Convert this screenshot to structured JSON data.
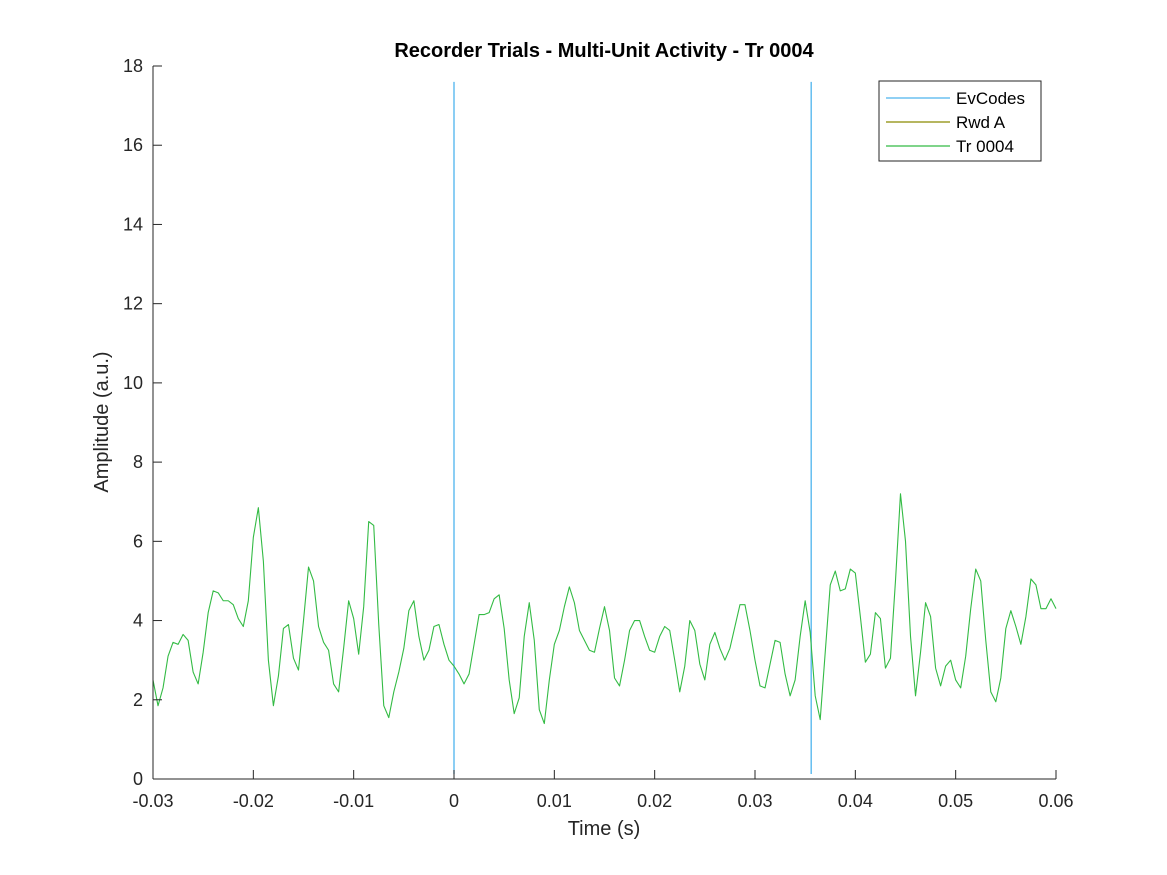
{
  "chart_data": {
    "type": "line",
    "title": "Recorder Trials - Multi-Unit Activity - Tr 0004",
    "xlabel": "Time (s)",
    "ylabel": "Amplitude (a.u.)",
    "xlim": [
      -0.03,
      0.06
    ],
    "ylim": [
      0,
      18
    ],
    "x_ticks": [
      -0.03,
      -0.02,
      -0.01,
      0,
      0.01,
      0.02,
      0.03,
      0.04,
      0.05,
      0.06
    ],
    "x_tick_labels": [
      "-0.03",
      "-0.02",
      "-0.01",
      "0",
      "0.01",
      "0.02",
      "0.03",
      "0.04",
      "0.05",
      "0.06"
    ],
    "y_ticks": [
      0,
      2,
      4,
      6,
      8,
      10,
      12,
      14,
      16,
      18
    ],
    "y_tick_labels": [
      "0",
      "2",
      "4",
      "6",
      "8",
      "10",
      "12",
      "14",
      "16",
      "18"
    ],
    "grid": false,
    "legend_position": "top-right",
    "legend": [
      {
        "label": "EvCodes",
        "color": "#4db3ee"
      },
      {
        "label": "Rwd A",
        "color": "#8b8b00"
      },
      {
        "label": "Tr 0004",
        "color": "#33bb44"
      }
    ],
    "event_lines": {
      "name": "EvCodes",
      "color": "#4db3ee",
      "x": [
        0,
        0.0356
      ],
      "y_range": [
        0,
        17.6
      ]
    },
    "series": [
      {
        "name": "Tr 0004",
        "color": "#33bb44",
        "x": [
          -0.03,
          -0.0295,
          -0.029,
          -0.0285,
          -0.028,
          -0.0275,
          -0.027,
          -0.0265,
          -0.026,
          -0.0255,
          -0.025,
          -0.0245,
          -0.024,
          -0.0235,
          -0.023,
          -0.0225,
          -0.022,
          -0.0215,
          -0.021,
          -0.0205,
          -0.02,
          -0.0195,
          -0.019,
          -0.0185,
          -0.018,
          -0.0175,
          -0.017,
          -0.0165,
          -0.016,
          -0.0155,
          -0.015,
          -0.0145,
          -0.014,
          -0.0135,
          -0.013,
          -0.0125,
          -0.012,
          -0.0115,
          -0.011,
          -0.0105,
          -0.01,
          -0.0095,
          -0.009,
          -0.0085,
          -0.008,
          -0.0075,
          -0.007,
          -0.0065,
          -0.006,
          -0.0055,
          -0.005,
          -0.0045,
          -0.004,
          -0.0035,
          -0.003,
          -0.0025,
          -0.002,
          -0.0015,
          -0.001,
          -0.0005,
          0,
          0.0005,
          0.001,
          0.0015,
          0.002,
          0.0025,
          0.003,
          0.0035,
          0.004,
          0.0045,
          0.005,
          0.0055,
          0.006,
          0.0065,
          0.007,
          0.0075,
          0.008,
          0.0085,
          0.009,
          0.0095,
          0.01,
          0.0105,
          0.011,
          0.0115,
          0.012,
          0.0125,
          0.013,
          0.0135,
          0.014,
          0.0145,
          0.015,
          0.0155,
          0.016,
          0.0165,
          0.017,
          0.0175,
          0.018,
          0.0185,
          0.019,
          0.0195,
          0.02,
          0.0205,
          0.021,
          0.0215,
          0.022,
          0.0225,
          0.023,
          0.0235,
          0.024,
          0.0245,
          0.025,
          0.0255,
          0.026,
          0.0265,
          0.027,
          0.0275,
          0.028,
          0.0285,
          0.029,
          0.0295,
          0.03,
          0.0305,
          0.031,
          0.0315,
          0.032,
          0.0325,
          0.033,
          0.0335,
          0.034,
          0.0345,
          0.035,
          0.0355,
          0.036,
          0.0365,
          0.037,
          0.0375,
          0.038,
          0.0385,
          0.039,
          0.0395,
          0.04,
          0.0405,
          0.041,
          0.0415,
          0.042,
          0.0425,
          0.043,
          0.0435,
          0.044,
          0.0445,
          0.045,
          0.0455,
          0.046,
          0.0465,
          0.047,
          0.0475,
          0.048,
          0.0485,
          0.049,
          0.0495,
          0.05,
          0.0505,
          0.051,
          0.0515,
          0.052,
          0.0525,
          0.053,
          0.0535,
          0.054,
          0.0545,
          0.055,
          0.0555,
          0.056,
          0.0565,
          0.057,
          0.0575,
          0.058,
          0.0585,
          0.059,
          0.0595,
          0.06
        ],
        "y": [
          2.5,
          1.85,
          2.3,
          3.1,
          3.45,
          3.4,
          3.65,
          3.5,
          2.7,
          2.4,
          3.2,
          4.2,
          4.75,
          4.7,
          4.5,
          4.5,
          4.4,
          4.05,
          3.85,
          4.5,
          6.1,
          6.85,
          5.5,
          3.0,
          1.85,
          2.6,
          3.8,
          3.9,
          3.05,
          2.75,
          4.0,
          5.35,
          5.0,
          3.85,
          3.45,
          3.25,
          2.4,
          2.2,
          3.3,
          4.5,
          4.05,
          3.15,
          4.35,
          6.5,
          6.4,
          3.9,
          1.85,
          1.55,
          2.2,
          2.7,
          3.3,
          4.25,
          4.5,
          3.6,
          3.0,
          3.25,
          3.85,
          3.9,
          3.4,
          3.0,
          2.85,
          2.65,
          2.4,
          2.65,
          3.4,
          4.15,
          4.15,
          4.2,
          4.55,
          4.65,
          3.8,
          2.5,
          1.65,
          2.05,
          3.6,
          4.45,
          3.5,
          1.75,
          1.4,
          2.5,
          3.4,
          3.75,
          4.35,
          4.85,
          4.45,
          3.75,
          3.5,
          3.25,
          3.2,
          3.8,
          4.35,
          3.75,
          2.55,
          2.35,
          3.0,
          3.75,
          4.0,
          4.0,
          3.6,
          3.25,
          3.2,
          3.6,
          3.85,
          3.75,
          3.0,
          2.2,
          2.85,
          4.0,
          3.75,
          2.9,
          2.5,
          3.4,
          3.7,
          3.3,
          3.0,
          3.3,
          3.85,
          4.4,
          4.4,
          3.75,
          3.0,
          2.35,
          2.3,
          2.9,
          3.5,
          3.45,
          2.65,
          2.1,
          2.5,
          3.6,
          4.5,
          3.7,
          2.1,
          1.5,
          3.2,
          4.9,
          5.25,
          4.75,
          4.8,
          5.3,
          5.2,
          4.1,
          2.95,
          3.15,
          4.2,
          4.05,
          2.8,
          3.05,
          5.0,
          7.2,
          6.0,
          3.6,
          2.1,
          3.2,
          4.45,
          4.1,
          2.8,
          2.35,
          2.85,
          3.0,
          2.5,
          2.3,
          3.1,
          4.3,
          5.3,
          5.0,
          3.5,
          2.2,
          1.95,
          2.55,
          3.8,
          4.25,
          3.85,
          3.4,
          4.1,
          5.05,
          4.9,
          4.3,
          4.3,
          4.55,
          4.3
        ]
      }
    ]
  }
}
